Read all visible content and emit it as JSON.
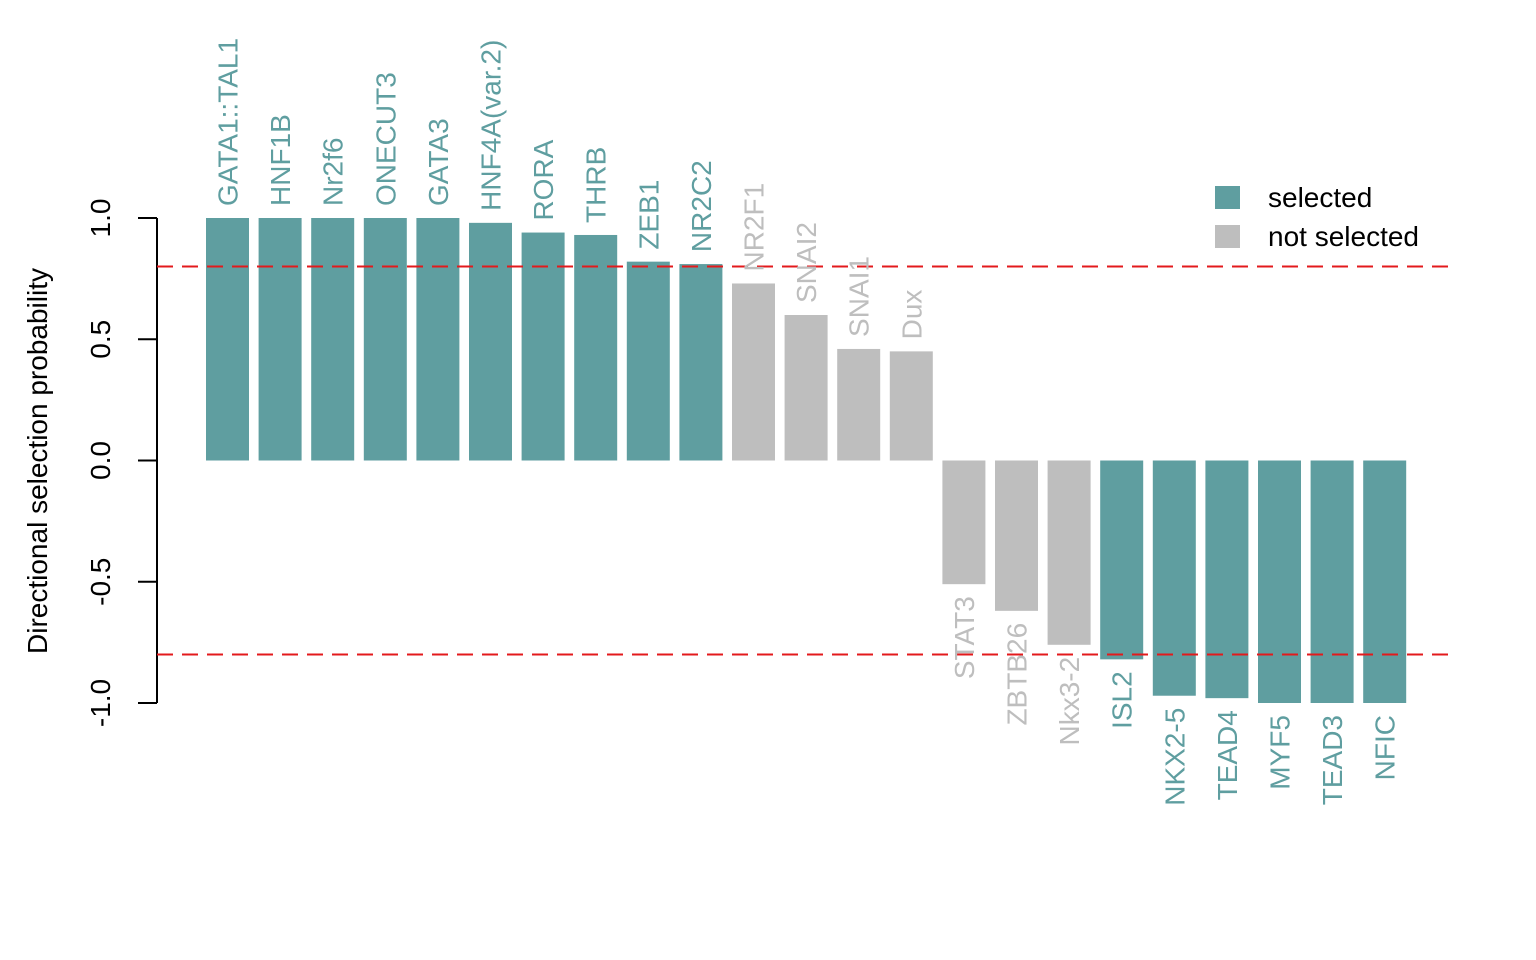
{
  "chart_data": {
    "type": "bar",
    "title": "",
    "xlabel": "",
    "ylabel": "Directional selection probability",
    "ylim": [
      -1.0,
      1.0
    ],
    "yticks": [
      -1.0,
      -0.5,
      0.0,
      0.5,
      1.0
    ],
    "ytick_labels": [
      "-1.0",
      "-0.5",
      "0.0",
      "0.5",
      "1.0"
    ],
    "threshold": 0.8,
    "grid": false,
    "legend_position": "top-right",
    "colors": {
      "selected": "#5f9ea0",
      "not_selected": "#bebebe",
      "threshold_line": "#e31a1c",
      "axis": "#000000"
    },
    "legend": [
      {
        "label": "selected",
        "status": "selected"
      },
      {
        "label": "not selected",
        "status": "not_selected"
      }
    ],
    "bars": [
      {
        "label": "GATA1::TAL1",
        "value": 1.0,
        "status": "selected"
      },
      {
        "label": "HNF1B",
        "value": 1.0,
        "status": "selected"
      },
      {
        "label": "Nr2f6",
        "value": 1.0,
        "status": "selected"
      },
      {
        "label": "ONECUT3",
        "value": 1.0,
        "status": "selected"
      },
      {
        "label": "GATA3",
        "value": 1.0,
        "status": "selected"
      },
      {
        "label": "HNF4A(var.2)",
        "value": 0.98,
        "status": "selected"
      },
      {
        "label": "RORA",
        "value": 0.94,
        "status": "selected"
      },
      {
        "label": "THRB",
        "value": 0.93,
        "status": "selected"
      },
      {
        "label": "ZEB1",
        "value": 0.82,
        "status": "selected"
      },
      {
        "label": "NR2C2",
        "value": 0.81,
        "status": "selected"
      },
      {
        "label": "NR2F1",
        "value": 0.73,
        "status": "not_selected"
      },
      {
        "label": "SNAI2",
        "value": 0.6,
        "status": "not_selected"
      },
      {
        "label": "SNAI1",
        "value": 0.46,
        "status": "not_selected"
      },
      {
        "label": "Dux",
        "value": 0.45,
        "status": "not_selected"
      },
      {
        "label": "STAT3",
        "value": -0.51,
        "status": "not_selected"
      },
      {
        "label": "ZBTB26",
        "value": -0.62,
        "status": "not_selected"
      },
      {
        "label": "Nkx3-2",
        "value": -0.76,
        "status": "not_selected"
      },
      {
        "label": "ISL2",
        "value": -0.82,
        "status": "selected"
      },
      {
        "label": "NKX2-5",
        "value": -0.97,
        "status": "selected"
      },
      {
        "label": "TEAD4",
        "value": -0.98,
        "status": "selected"
      },
      {
        "label": "MYF5",
        "value": -1.0,
        "status": "selected"
      },
      {
        "label": "TEAD3",
        "value": -1.0,
        "status": "selected"
      },
      {
        "label": "NFIC",
        "value": -1.0,
        "status": "selected"
      }
    ]
  }
}
